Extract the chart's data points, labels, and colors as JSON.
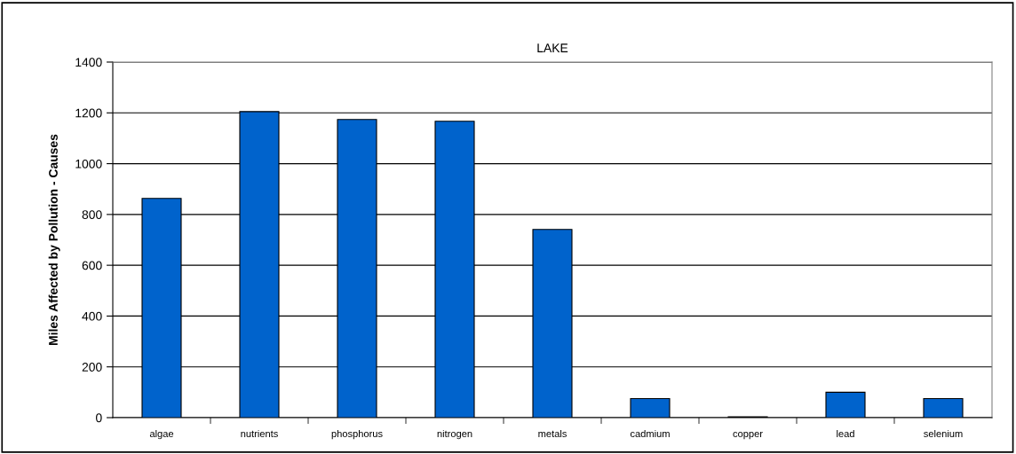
{
  "chart_data": {
    "type": "bar",
    "title": "LAKE",
    "ylabel": "Miles Affected by Pollution - Causes",
    "categories": [
      "algae",
      "nutrients",
      "phosphorus",
      "nitrogen",
      "metals",
      "cadmium",
      "copper",
      "lead",
      "selenium"
    ],
    "values": [
      863,
      1205,
      1174,
      1167,
      741,
      75,
      3,
      100,
      75
    ],
    "color": "#0063cc",
    "ylim": [
      0,
      1400
    ],
    "yticks": [
      0,
      200,
      400,
      600,
      800,
      1000,
      1200,
      1400
    ],
    "grid": "y"
  }
}
